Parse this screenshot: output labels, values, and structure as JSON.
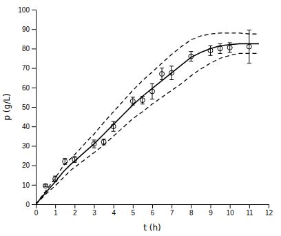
{
  "chart_data": {
    "type": "line",
    "xlabel": "t (h)",
    "ylabel": "p (g/L)",
    "xlim": [
      0,
      12
    ],
    "ylim": [
      0,
      100
    ],
    "xticks": [
      0,
      1,
      2,
      3,
      4,
      5,
      6,
      7,
      8,
      9,
      10,
      11,
      12
    ],
    "yticks": [
      0,
      10,
      20,
      30,
      40,
      50,
      60,
      70,
      80,
      90,
      100
    ],
    "grid": false,
    "series": [
      {
        "type": "line",
        "line_style": "dashed",
        "color": "#000000",
        "x": [
          0.0,
          0.3,
          0.6,
          1.0,
          1.4,
          1.8,
          2.2,
          2.6,
          3.0,
          3.5,
          4.0,
          4.5,
          5.0,
          5.5,
          6.0,
          6.5,
          7.0,
          7.5,
          8.0,
          8.5,
          9.0,
          9.5,
          10.0,
          10.5,
          11.0,
          11.5
        ],
        "values": [
          0.0,
          4.0,
          8.0,
          13.5,
          19.5,
          23.5,
          27.5,
          32.0,
          36.0,
          42.0,
          47.5,
          53.0,
          58.5,
          63.5,
          68.0,
          72.5,
          77.0,
          81.0,
          84.5,
          86.5,
          87.5,
          88.0,
          88.0,
          88.0,
          87.5,
          87.5
        ]
      },
      {
        "type": "line",
        "line_style": "dashed",
        "color": "#000000",
        "x": [
          0.0,
          0.3,
          0.6,
          1.0,
          1.4,
          1.8,
          2.2,
          2.6,
          3.0,
          3.5,
          4.0,
          4.5,
          5.0,
          5.5,
          6.0,
          6.5,
          7.0,
          7.5,
          8.0,
          8.5,
          9.0,
          9.5,
          10.0,
          10.5,
          11.0,
          11.5
        ],
        "values": [
          0.0,
          3.0,
          6.0,
          9.5,
          13.5,
          17.5,
          20.5,
          23.5,
          26.5,
          30.5,
          35.0,
          39.5,
          44.0,
          47.5,
          51.5,
          55.0,
          58.5,
          62.0,
          66.0,
          69.5,
          72.5,
          75.0,
          76.5,
          77.5,
          77.5,
          77.5
        ]
      },
      {
        "type": "line",
        "line_style": "solid",
        "color": "#000000",
        "x": [
          0.0,
          0.3,
          0.6,
          1.0,
          1.4,
          1.8,
          2.2,
          2.6,
          3.0,
          3.5,
          4.0,
          4.5,
          5.0,
          5.5,
          6.0,
          6.5,
          7.0,
          7.5,
          8.0,
          8.5,
          9.0,
          9.5,
          10.0,
          10.5,
          11.0,
          11.5
        ],
        "values": [
          0.0,
          3.5,
          7.0,
          11.5,
          16.5,
          20.5,
          24.0,
          27.5,
          31.0,
          36.0,
          41.0,
          46.0,
          51.0,
          55.5,
          59.5,
          63.5,
          67.5,
          71.5,
          75.5,
          78.0,
          80.0,
          81.5,
          82.0,
          82.5,
          82.5,
          82.5
        ]
      },
      {
        "type": "scatter",
        "marker": "circle",
        "color": "#000000",
        "x": [
          0.5,
          1.0,
          1.5,
          2.0,
          3.0,
          3.5,
          4.0,
          5.0,
          5.5,
          6.0,
          6.5,
          7.0,
          8.0,
          9.0,
          9.5,
          10.0,
          11.0
        ],
        "values": [
          9.5,
          13.0,
          22.0,
          23.0,
          31.0,
          32.0,
          40.0,
          53.0,
          53.5,
          58.0,
          67.0,
          67.5,
          76.0,
          79.0,
          80.0,
          80.5,
          81.0
        ],
        "errors": [
          0.5,
          1.5,
          1.5,
          1.5,
          2.0,
          1.5,
          2.5,
          2.0,
          2.0,
          4.0,
          3.0,
          3.5,
          2.5,
          2.5,
          2.5,
          2.5,
          8.5
        ]
      }
    ]
  }
}
